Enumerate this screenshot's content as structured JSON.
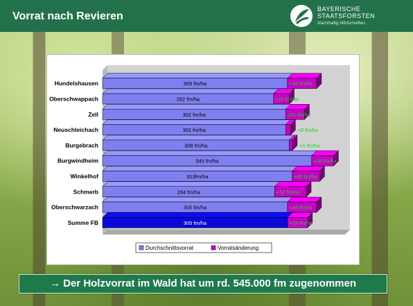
{
  "header": {
    "title": "Vorrat nach Revieren",
    "brand_line1": "BAYERISCHE",
    "brand_line2": "STAATSFORSTEN",
    "brand_tagline": "Nachhaltig Wirtschaften."
  },
  "banner": {
    "text": "→ Der Holzvorrat im Wald hat um rd. 545.000 fm zugenommen"
  },
  "colors": {
    "header": "#23714a",
    "avg_bar": "#7f7ff0",
    "total_bar": "#0a0ad6",
    "change_bar": "#c800c8",
    "change_label": "#22cc22",
    "chart_wall": "#d2d2d2"
  },
  "chart_data": {
    "type": "bar",
    "orientation": "horizontal",
    "stacked": true,
    "three_d": true,
    "categories": [
      "Hundelshausen",
      "Oberschwappach",
      "Zell",
      "Neuschleichach",
      "Burgebrach",
      "Burgwindheim",
      "Winkelhof",
      "Schmerb",
      "Oberschwarzach",
      "Summe FB"
    ],
    "series": [
      {
        "name": "Durchschnittsvorrat",
        "values": [
          305,
          282,
          302,
          302,
          308,
          345,
          313,
          284,
          305,
          305
        ],
        "labels": [
          "305 fm/ha",
          "282 fm/ha",
          "302 fm/ha",
          "302 fm/ha",
          "308 fm/ha",
          "345 fm/ha",
          "313fm/ha",
          "284 fm/ha",
          "305 fm/ha",
          "305 fm/ha"
        ]
      },
      {
        "name": "Vorratsänderung",
        "values": [
          48,
          26,
          31,
          8,
          5,
          36,
          45,
          52,
          48,
          33
        ],
        "labels": [
          "+48 fm/ha",
          "+26 fm/ha",
          "+31 fm/ha",
          "+8 fm/ha",
          "+5 fm/ha",
          "+36 fm/ha",
          "+45 fm/ha",
          "+52 fm/ha",
          "+48 fm/ha",
          "+33 fm/ha"
        ]
      }
    ],
    "total_category": "Summe FB",
    "xlim": [
      0,
      400
    ],
    "legend_position": "bottom",
    "grid": false
  }
}
